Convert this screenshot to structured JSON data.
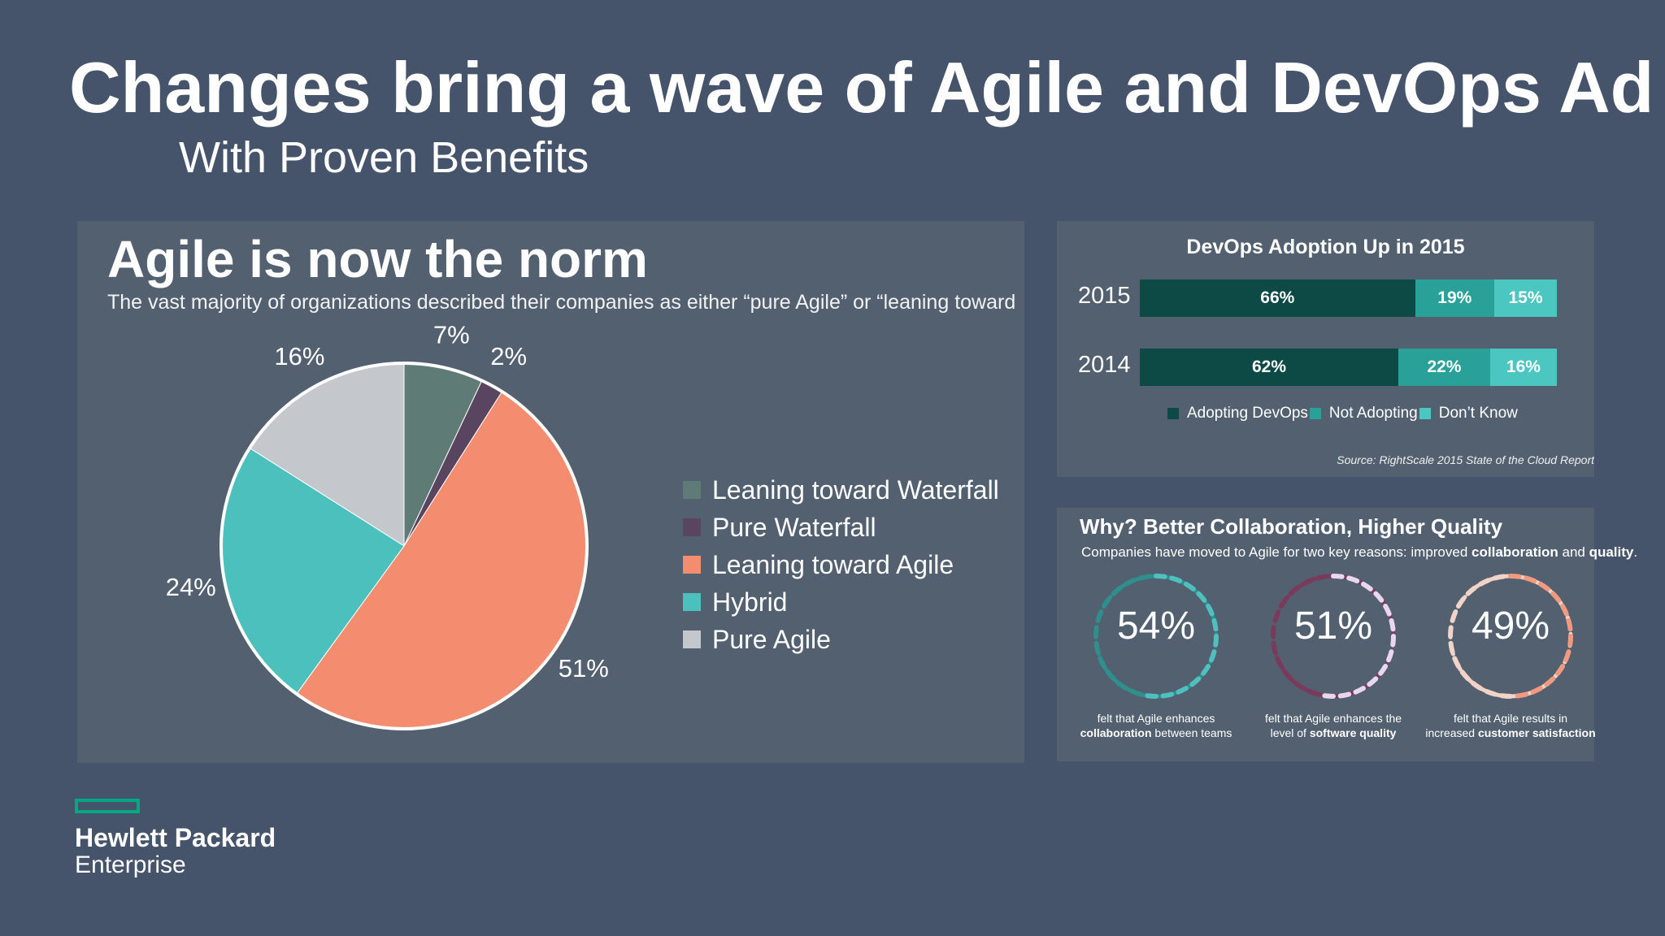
{
  "header": {
    "title": "Changes bring a wave of Agile and DevOps Ad",
    "subtitle": "With Proven Benefits"
  },
  "agile_panel": {
    "heading": "Agile is now the norm",
    "description": "The vast majority of organizations described their companies as either “pure Agile” or “leaning toward"
  },
  "devops_panel": {
    "title": "DevOps Adoption Up in 2015",
    "rows": [
      {
        "year": "2015",
        "labels": [
          "66%",
          "19%",
          "15%"
        ]
      },
      {
        "year": "2014",
        "labels": [
          "62%",
          "22%",
          "16%"
        ]
      }
    ],
    "legend": [
      "Adopting DevOps",
      "Not Adopting",
      "Don’t Know"
    ],
    "source": "Source: RightScale 2015 State of the Cloud Report"
  },
  "why_panel": {
    "title": "Why? Better Collaboration, Higher Quality",
    "subtitle_pre": "Companies have moved to Agile for two key reasons: improved ",
    "subtitle_b1": "collaboration",
    "subtitle_mid": " and ",
    "subtitle_b2": "quality",
    "subtitle_post": ".",
    "rings": [
      {
        "value": "54%",
        "pct": 54,
        "color": "#4fc0be",
        "track": "#2f8f8c",
        "caption_line1": "felt that Agile enhances",
        "caption_bold": "collaboration",
        "caption_rest": " between teams",
        "caption_prefix": ""
      },
      {
        "value": "51%",
        "pct": 51,
        "color": "#e8d7ee",
        "track": "#7a3a5c",
        "caption_line1": "felt that Agile enhances the",
        "caption_prefix": "level of ",
        "caption_bold": "software quality",
        "caption_rest": ""
      },
      {
        "value": "49%",
        "pct": 49,
        "color": "#f19a80",
        "track": "#f2d3c7",
        "caption_line1": "felt that Agile results in",
        "caption_prefix": "increased ",
        "caption_bold": "customer satisfaction",
        "caption_rest": ""
      }
    ]
  },
  "logo": {
    "line1": "Hewlett Packard",
    "line2": "Enterprise"
  },
  "colors": {
    "background": "#45546a",
    "panel": "#52606f",
    "adopting": "#0e4a45",
    "not_adopting": "#2aa198",
    "dont_know": "#4cc6c0",
    "hpe_green": "#01a982"
  },
  "chart_data": [
    {
      "type": "pie",
      "series": [
        {
          "name": "Pure Agile",
          "value": 16,
          "label": "16%",
          "color": "#c4c7cc"
        },
        {
          "name": "Leaning toward Waterfall",
          "value": 7,
          "label": "7%",
          "color": "#5e7b76"
        },
        {
          "name": "Pure Waterfall",
          "value": 2,
          "label": "2%",
          "color": "#5a4560"
        },
        {
          "name": "Leaning toward Agile",
          "value": 51,
          "label": "51%",
          "color": "#f48c70"
        },
        {
          "name": "Hybrid",
          "value": 24,
          "label": "24%",
          "color": "#4cc0bc"
        }
      ],
      "legend_order": [
        "Leaning toward Waterfall",
        "Pure Waterfall",
        "Leaning toward Agile",
        "Hybrid",
        "Pure Agile"
      ],
      "legend_position": "right"
    },
    {
      "type": "bar",
      "orientation": "horizontal",
      "stacked": true,
      "title": "DevOps Adoption Up in 2015",
      "categories": [
        "2015",
        "2014"
      ],
      "series": [
        {
          "name": "Adopting DevOps",
          "values": [
            66,
            62
          ],
          "color": "#0e4a45"
        },
        {
          "name": "Not Adopting",
          "values": [
            19,
            22
          ],
          "color": "#2aa198"
        },
        {
          "name": "Don’t Know",
          "values": [
            15,
            16
          ],
          "color": "#4cc6c0"
        }
      ],
      "legend_position": "bottom"
    }
  ]
}
